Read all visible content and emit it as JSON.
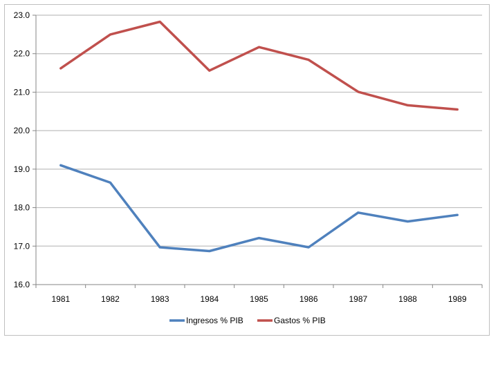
{
  "chart_data": {
    "type": "line",
    "title": "",
    "xlabel": "",
    "ylabel": "",
    "categories": [
      "1981",
      "1982",
      "1983",
      "1984",
      "1985",
      "1986",
      "1987",
      "1988",
      "1989"
    ],
    "ylim": [
      16.0,
      23.0
    ],
    "yticks": [
      "16.0",
      "17.0",
      "18.0",
      "19.0",
      "20.0",
      "21.0",
      "22.0",
      "23.0"
    ],
    "grid": true,
    "legend_position": "bottom",
    "series": [
      {
        "name": "Ingresos % PIB",
        "color": "#4f81bd",
        "values": [
          19.1,
          18.65,
          16.97,
          16.87,
          17.21,
          16.97,
          17.87,
          17.64,
          17.81
        ]
      },
      {
        "name": "Gastos % PIB",
        "color": "#c0504d",
        "values": [
          21.62,
          22.5,
          22.83,
          21.56,
          22.17,
          21.84,
          21.01,
          20.66,
          20.55
        ]
      }
    ]
  }
}
